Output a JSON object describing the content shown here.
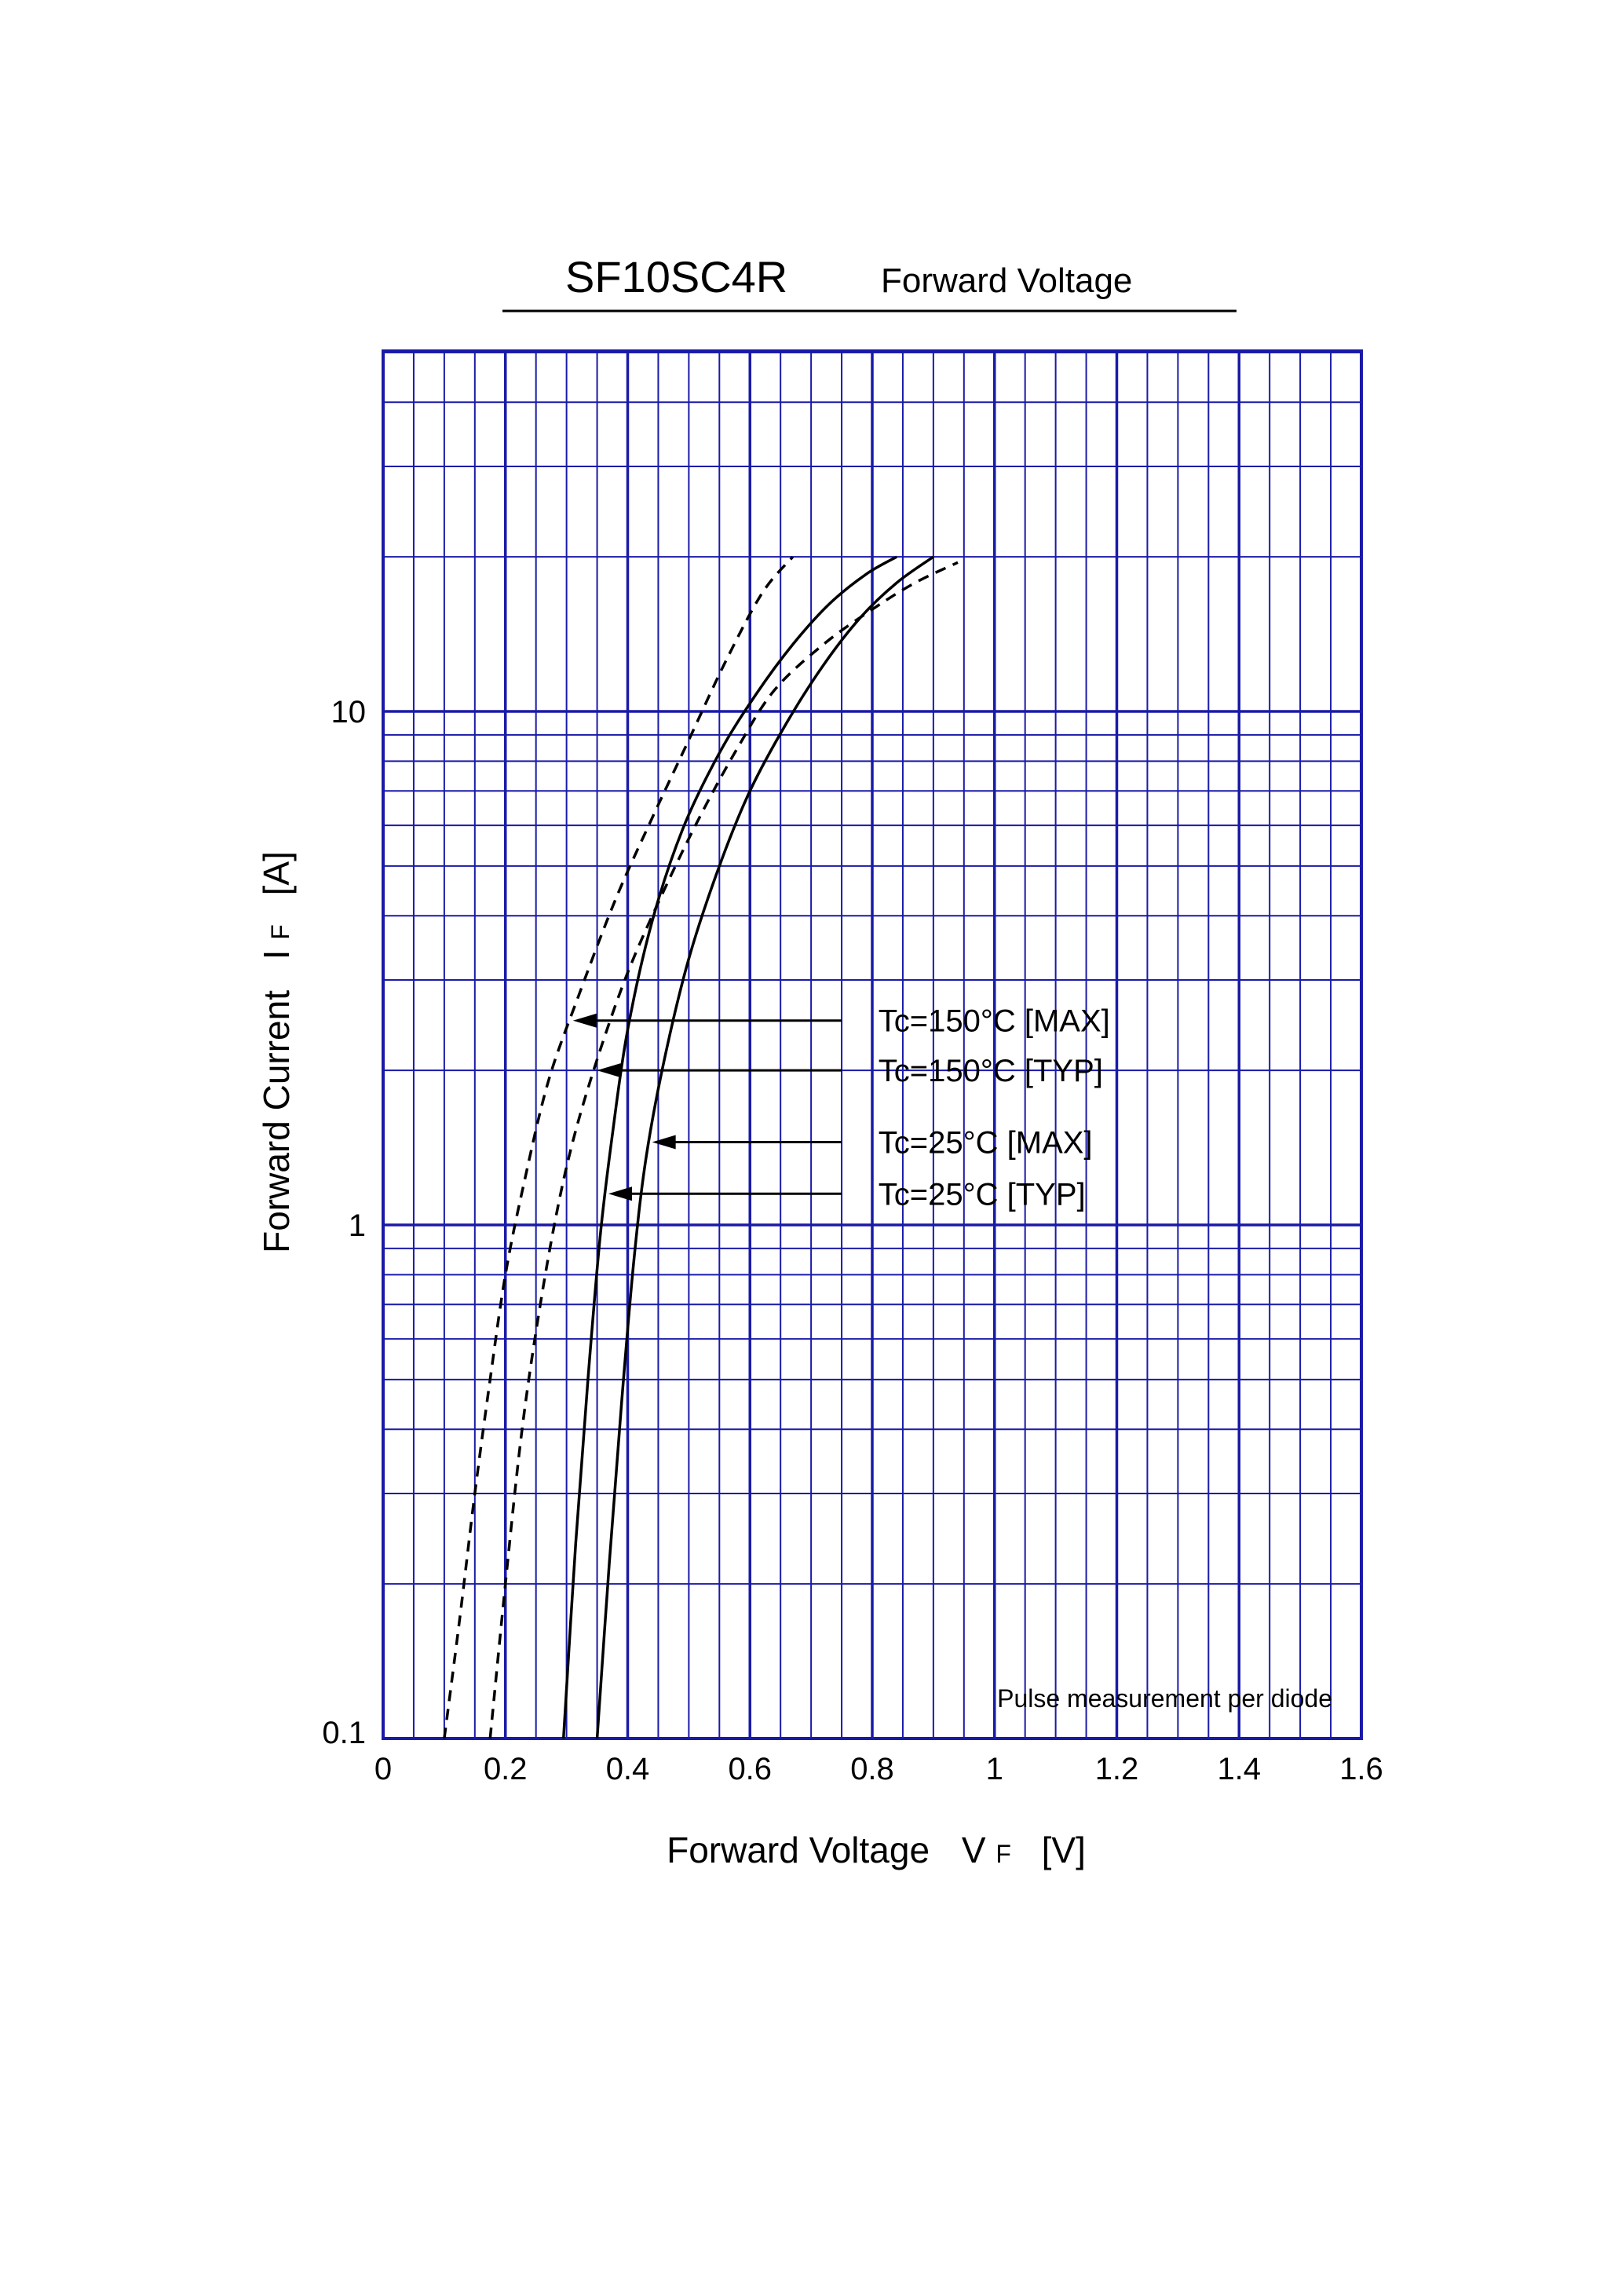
{
  "chart_data": {
    "type": "line",
    "title": "SF10SC4R",
    "subtitle": "Forward  Voltage",
    "xlabel": "Forward Voltage",
    "xlabel_symbol": "V",
    "xlabel_sub": "F",
    "xlabel_unit": "[V]",
    "ylabel": "Forward Current",
    "ylabel_symbol": "I",
    "ylabel_sub": "F",
    "ylabel_unit": "[A]",
    "xlim": [
      0,
      1.6
    ],
    "ylim": [
      0.1,
      50
    ],
    "y_scale": "log",
    "grid": true,
    "x_ticks": [
      "0",
      "0.2",
      "0.4",
      "0.6",
      "0.8",
      "1",
      "1.2",
      "1.4",
      "1.6"
    ],
    "y_ticks": [
      "0.1",
      "1",
      "10"
    ],
    "note": "Pulse  measurement  per  diode",
    "colors": {
      "grid": "#1a1aa8",
      "curve": "#000000"
    },
    "series": [
      {
        "name": "Tc=150°C [MAX]",
        "style": "dashed",
        "label_y": 2.5,
        "x": [
          0.1,
          0.125,
          0.15,
          0.175,
          0.2,
          0.23,
          0.27,
          0.32,
          0.38,
          0.44,
          0.5,
          0.56,
          0.62,
          0.67
        ],
        "y": [
          0.1,
          0.17,
          0.3,
          0.5,
          0.8,
          1.2,
          1.9,
          2.8,
          4.3,
          6.2,
          8.8,
          12.5,
          17,
          20
        ]
      },
      {
        "name": "Tc=150°C [TYP]",
        "style": "dashed",
        "label_y": 2.0,
        "x": [
          0.175,
          0.2,
          0.225,
          0.25,
          0.28,
          0.31,
          0.35,
          0.4,
          0.46,
          0.52,
          0.58,
          0.64,
          0.72,
          0.8,
          0.87,
          0.94
        ],
        "y": [
          0.1,
          0.2,
          0.38,
          0.62,
          1.0,
          1.45,
          2.1,
          3.1,
          4.5,
          6.3,
          8.5,
          11,
          13.5,
          15.8,
          17.8,
          19.5
        ]
      },
      {
        "name": "Tc=25°C [MAX]",
        "style": "solid",
        "label_y": 1.45,
        "x": [
          0.35,
          0.37,
          0.39,
          0.41,
          0.43,
          0.46,
          0.5,
          0.55,
          0.6,
          0.66,
          0.72,
          0.78,
          0.84,
          0.9
        ],
        "y": [
          0.1,
          0.22,
          0.45,
          0.85,
          1.35,
          2.1,
          3.3,
          5.0,
          7.0,
          9.5,
          12.3,
          15.2,
          17.8,
          20
        ]
      },
      {
        "name": "Tc=25°C [TYP]",
        "style": "solid",
        "label_y": 1.15,
        "x": [
          0.295,
          0.315,
          0.335,
          0.355,
          0.375,
          0.4,
          0.44,
          0.49,
          0.55,
          0.61,
          0.67,
          0.73,
          0.79,
          0.84
        ],
        "y": [
          0.1,
          0.24,
          0.5,
          0.95,
          1.5,
          2.4,
          3.9,
          5.9,
          8.3,
          10.8,
          13.5,
          16.2,
          18.5,
          20
        ]
      }
    ]
  }
}
